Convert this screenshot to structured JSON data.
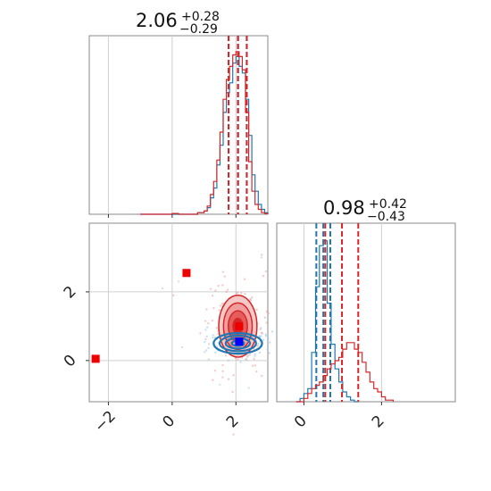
{
  "chart_data": [
    {
      "type": "histogram",
      "panel": "top-left",
      "title": {
        "value": "2.06",
        "plus": "+0.28",
        "minus": "−0.29"
      },
      "x_range": [
        -2.6,
        3.0
      ],
      "x_ticks": [
        -2,
        0,
        2
      ],
      "grid": true,
      "series": [
        {
          "color": "#1f77b4",
          "bin_edges": [
            -1.0,
            -0.8,
            -0.6,
            -0.4,
            -0.2,
            0.0,
            0.2,
            0.4,
            0.6,
            0.8,
            1.0,
            1.1,
            1.2,
            1.3,
            1.4,
            1.5,
            1.6,
            1.7,
            1.8,
            1.9,
            2.0,
            2.1,
            2.2,
            2.3,
            2.4,
            2.5,
            2.6,
            2.7,
            2.8,
            2.9,
            3.0
          ],
          "counts": [
            0,
            0,
            0,
            0,
            0,
            0,
            0,
            0,
            0,
            0.01,
            0.02,
            0.04,
            0.1,
            0.16,
            0.3,
            0.42,
            0.62,
            0.74,
            0.8,
            0.92,
            0.96,
            0.9,
            0.86,
            0.7,
            0.48,
            0.24,
            0.14,
            0.06,
            0.03,
            0.01
          ],
          "quantile_lines": [
            1.77,
            2.07,
            2.34
          ]
        },
        {
          "color": "#d62728",
          "bin_edges": [
            -1.0,
            -0.8,
            -0.6,
            -0.4,
            -0.2,
            0.0,
            0.2,
            0.4,
            0.6,
            0.8,
            1.0,
            1.1,
            1.2,
            1.3,
            1.4,
            1.5,
            1.6,
            1.7,
            1.8,
            1.9,
            2.0,
            2.1,
            2.2,
            2.3,
            2.4,
            2.5,
            2.6,
            2.7,
            2.8,
            2.9,
            3.0
          ],
          "counts": [
            0,
            0,
            0,
            0,
            0,
            0.005,
            0,
            0,
            0,
            0.01,
            0.02,
            0.05,
            0.12,
            0.2,
            0.33,
            0.5,
            0.7,
            0.82,
            0.9,
            0.97,
            0.99,
            0.96,
            0.88,
            0.62,
            0.32,
            0.14,
            0.06,
            0.03,
            0.01,
            0.005
          ],
          "quantile_lines": [
            1.77,
            2.06,
            2.34
          ]
        }
      ]
    },
    {
      "type": "histogram",
      "panel": "bottom-right",
      "title": {
        "value": "0.98",
        "plus": "+0.42",
        "minus": "−0.43"
      },
      "x_range": [
        -0.7,
        3.9
      ],
      "x_ticks": [
        0,
        2
      ],
      "grid": true,
      "series": [
        {
          "color": "#1f77b4",
          "bin_edges": [
            -0.2,
            -0.1,
            0.0,
            0.1,
            0.2,
            0.3,
            0.4,
            0.5,
            0.6,
            0.7,
            0.8,
            0.9,
            1.0,
            1.1,
            1.2,
            1.3,
            1.4
          ],
          "counts": [
            0,
            0.02,
            0.05,
            0.08,
            0.3,
            0.7,
            0.95,
            0.98,
            0.6,
            0.35,
            0.2,
            0.12,
            0.06,
            0.03,
            0.01,
            0
          ],
          "quantile_lines": [
            0.32,
            0.5,
            0.68
          ]
        },
        {
          "color": "#d62728",
          "bin_edges": [
            -0.2,
            0.0,
            0.1,
            0.2,
            0.3,
            0.4,
            0.5,
            0.6,
            0.7,
            0.8,
            0.9,
            1.0,
            1.1,
            1.2,
            1.3,
            1.4,
            1.5,
            1.6,
            1.7,
            1.8,
            1.9,
            2.0,
            2.1,
            2.3
          ],
          "counts": [
            0,
            0.02,
            0.05,
            0.08,
            0.1,
            0.12,
            0.16,
            0.2,
            0.23,
            0.25,
            0.27,
            0.32,
            0.36,
            0.36,
            0.32,
            0.3,
            0.24,
            0.18,
            0.12,
            0.08,
            0.06,
            0.03,
            0.01
          ],
          "quantile_lines": [
            0.55,
            0.98,
            1.4
          ]
        }
      ]
    },
    {
      "type": "scatter-contour",
      "panel": "bottom-left",
      "x_range": [
        -2.6,
        3.0
      ],
      "y_range": [
        -1.2,
        4.0
      ],
      "x_ticks": [
        -2,
        0,
        2
      ],
      "y_ticks": [
        0,
        2
      ],
      "grid": true,
      "markers": [
        {
          "x": 0.45,
          "y": 2.55,
          "color": "#ee0000"
        },
        {
          "x": -2.4,
          "y": 0.05,
          "color": "#ee0000"
        },
        {
          "x": 2.1,
          "y": 1.0,
          "color": "#ee0000"
        },
        {
          "x": 2.1,
          "y": 0.55,
          "color": "#0000ff"
        }
      ],
      "red_contour": {
        "center": [
          2.06,
          1.0
        ],
        "sigma": [
          0.3,
          0.45
        ],
        "levels": [
          0.5,
          1.0,
          1.5,
          2.0
        ],
        "color": "#d62728"
      },
      "blue_contour": {
        "center": [
          2.06,
          0.5
        ],
        "sigma": [
          0.38,
          0.15
        ],
        "levels": [
          0.5,
          1.0,
          1.5,
          2.0
        ],
        "color": "#1f77b4"
      }
    }
  ]
}
